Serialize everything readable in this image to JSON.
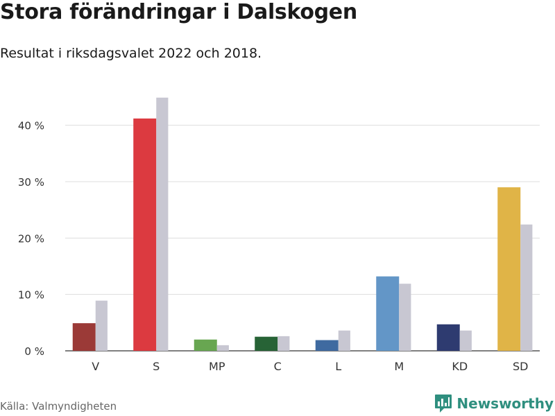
{
  "title": "Stora förändringar i Dalskogen",
  "subtitle": "Resultat i riksdagsvalet 2022 och 2018.",
  "source": "Källa: Valmyndigheten",
  "brand": {
    "name": "Newsworthy",
    "color": "#2f8f7f",
    "icon": "bar-chart-logo-icon"
  },
  "chart_data": {
    "type": "bar",
    "categories": [
      "V",
      "S",
      "MP",
      "C",
      "L",
      "M",
      "KD",
      "SD"
    ],
    "series": [
      {
        "values": [
          4.9,
          41.2,
          2.0,
          2.5,
          1.9,
          13.2,
          4.7,
          29.0
        ],
        "colors": [
          "#9b3a37",
          "#dc3a40",
          "#68a651",
          "#276336",
          "#3f6aa0",
          "#6396c7",
          "#2e3b70",
          "#e0b447"
        ]
      },
      {
        "values": [
          8.9,
          44.9,
          1.0,
          2.6,
          3.6,
          11.9,
          3.6,
          22.4
        ],
        "color": "#c8c7d2"
      }
    ],
    "ylim": [
      0,
      45
    ],
    "yticks": [
      0,
      10,
      20,
      30,
      40
    ],
    "ytick_labels": [
      "0 %",
      "10 %",
      "20 %",
      "30 %",
      "40 %"
    ],
    "xlabel": "",
    "ylabel": "",
    "grid": true
  }
}
